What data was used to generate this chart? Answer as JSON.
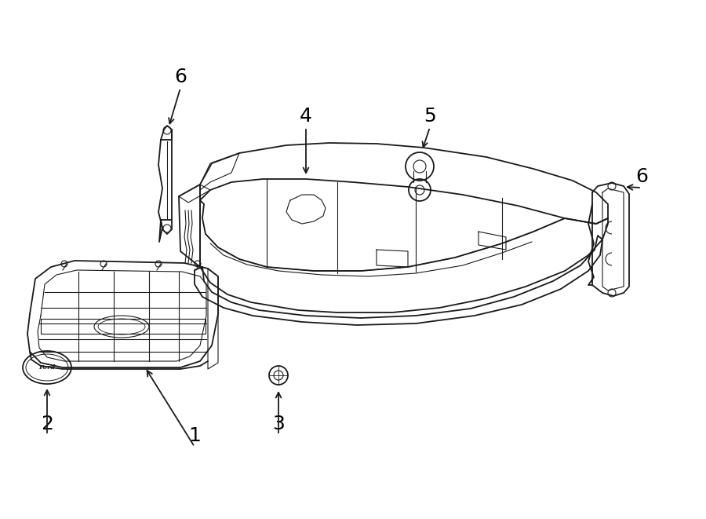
{
  "bg_color": "#ffffff",
  "line_color": "#1a1a1a",
  "label_color": "#000000",
  "fig_width": 9.0,
  "fig_height": 6.61
}
